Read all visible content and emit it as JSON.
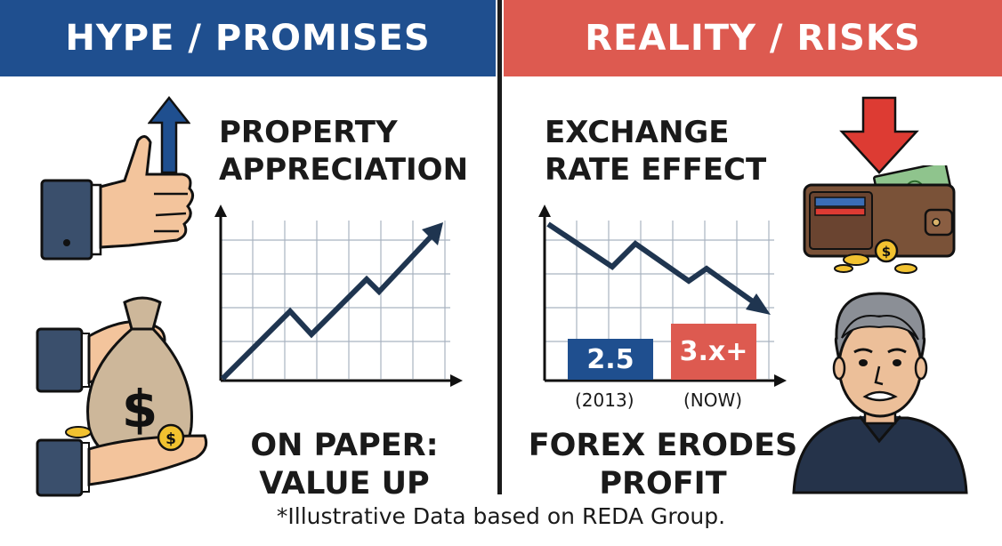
{
  "left": {
    "header": "HYPE / PROMISES",
    "chart_title": "PROPERTY\nAPPRECIATION",
    "caption": "ON PAPER:\nVALUE UP"
  },
  "right": {
    "header": "REALITY / RISKS",
    "chart_title": "EXCHANGE\nRATE EFFECT",
    "caption": "FOREX ERODES\nPROFIT",
    "bars": [
      {
        "value": "2.5",
        "label": "(2013)"
      },
      {
        "value": "3.x+",
        "label": "(NOW)"
      }
    ]
  },
  "footnote": "*Illustrative Data based on REDA Group.",
  "colors": {
    "blue": "#1f4f8f",
    "red": "#dd5a50",
    "navy": "#1f3550"
  }
}
